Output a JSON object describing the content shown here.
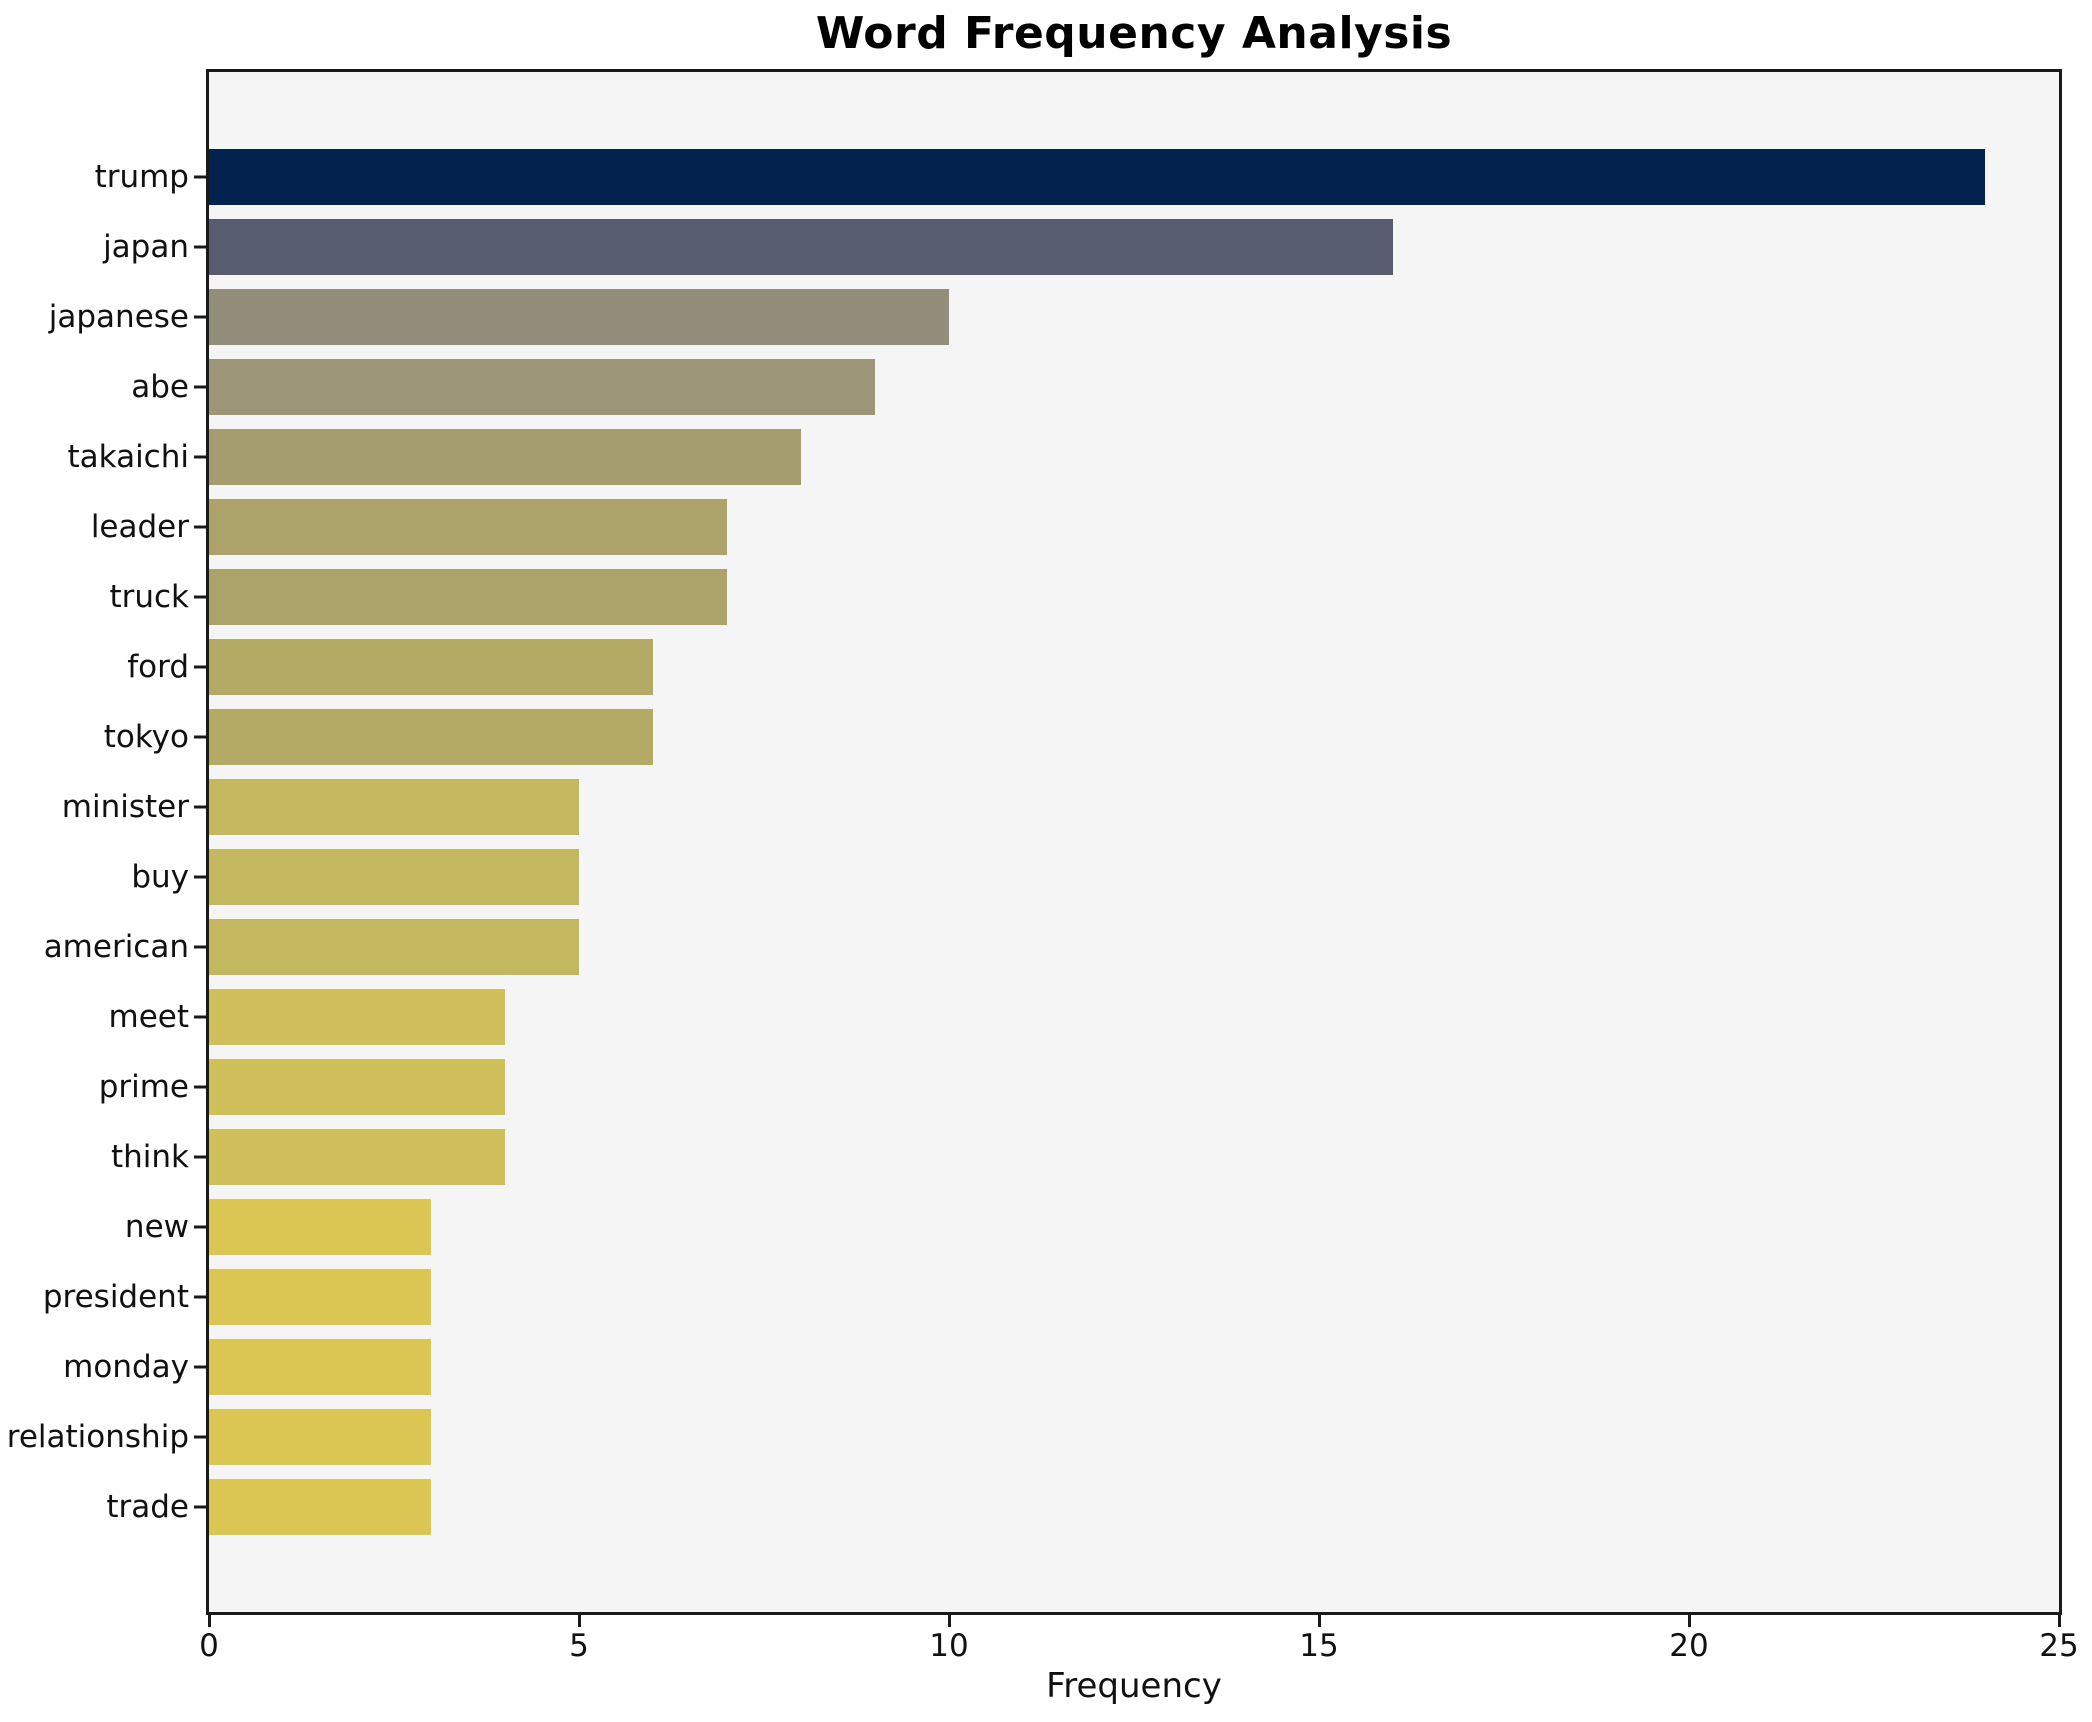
{
  "chart_data": {
    "type": "bar",
    "orientation": "horizontal",
    "title": "Word Frequency Analysis",
    "xlabel": "Frequency",
    "ylabel": "",
    "xlim": [
      0,
      25
    ],
    "x_ticks": [
      0,
      5,
      10,
      15,
      20,
      25
    ],
    "grid": false,
    "legend": "none",
    "plot_background": "#f5f5f6",
    "figure_background": "#ffffff",
    "spine_color": "#1a1a1a",
    "categories": [
      "trump",
      "japan",
      "japanese",
      "abe",
      "takaichi",
      "leader",
      "truck",
      "ford",
      "tokyo",
      "minister",
      "buy",
      "american",
      "meet",
      "prime",
      "think",
      "new",
      "president",
      "monday",
      "relationship",
      "trade"
    ],
    "values": [
      24,
      16,
      10,
      9,
      8,
      7,
      7,
      6,
      6,
      5,
      5,
      5,
      4,
      4,
      4,
      3,
      3,
      3,
      3,
      3
    ],
    "bar_colors": [
      "#03234e",
      "#575d6e",
      "#938e7b",
      "#9c9577",
      "#a59d70",
      "#aca36a",
      "#aca36a",
      "#b3aa65",
      "#b3aa65",
      "#c3b75f",
      "#c3b75f",
      "#c3b75f",
      "#d0c05b",
      "#d0c05b",
      "#d0c05b",
      "#dbc553",
      "#dbc553",
      "#dbc553",
      "#dbc553",
      "#dbc553"
    ]
  }
}
